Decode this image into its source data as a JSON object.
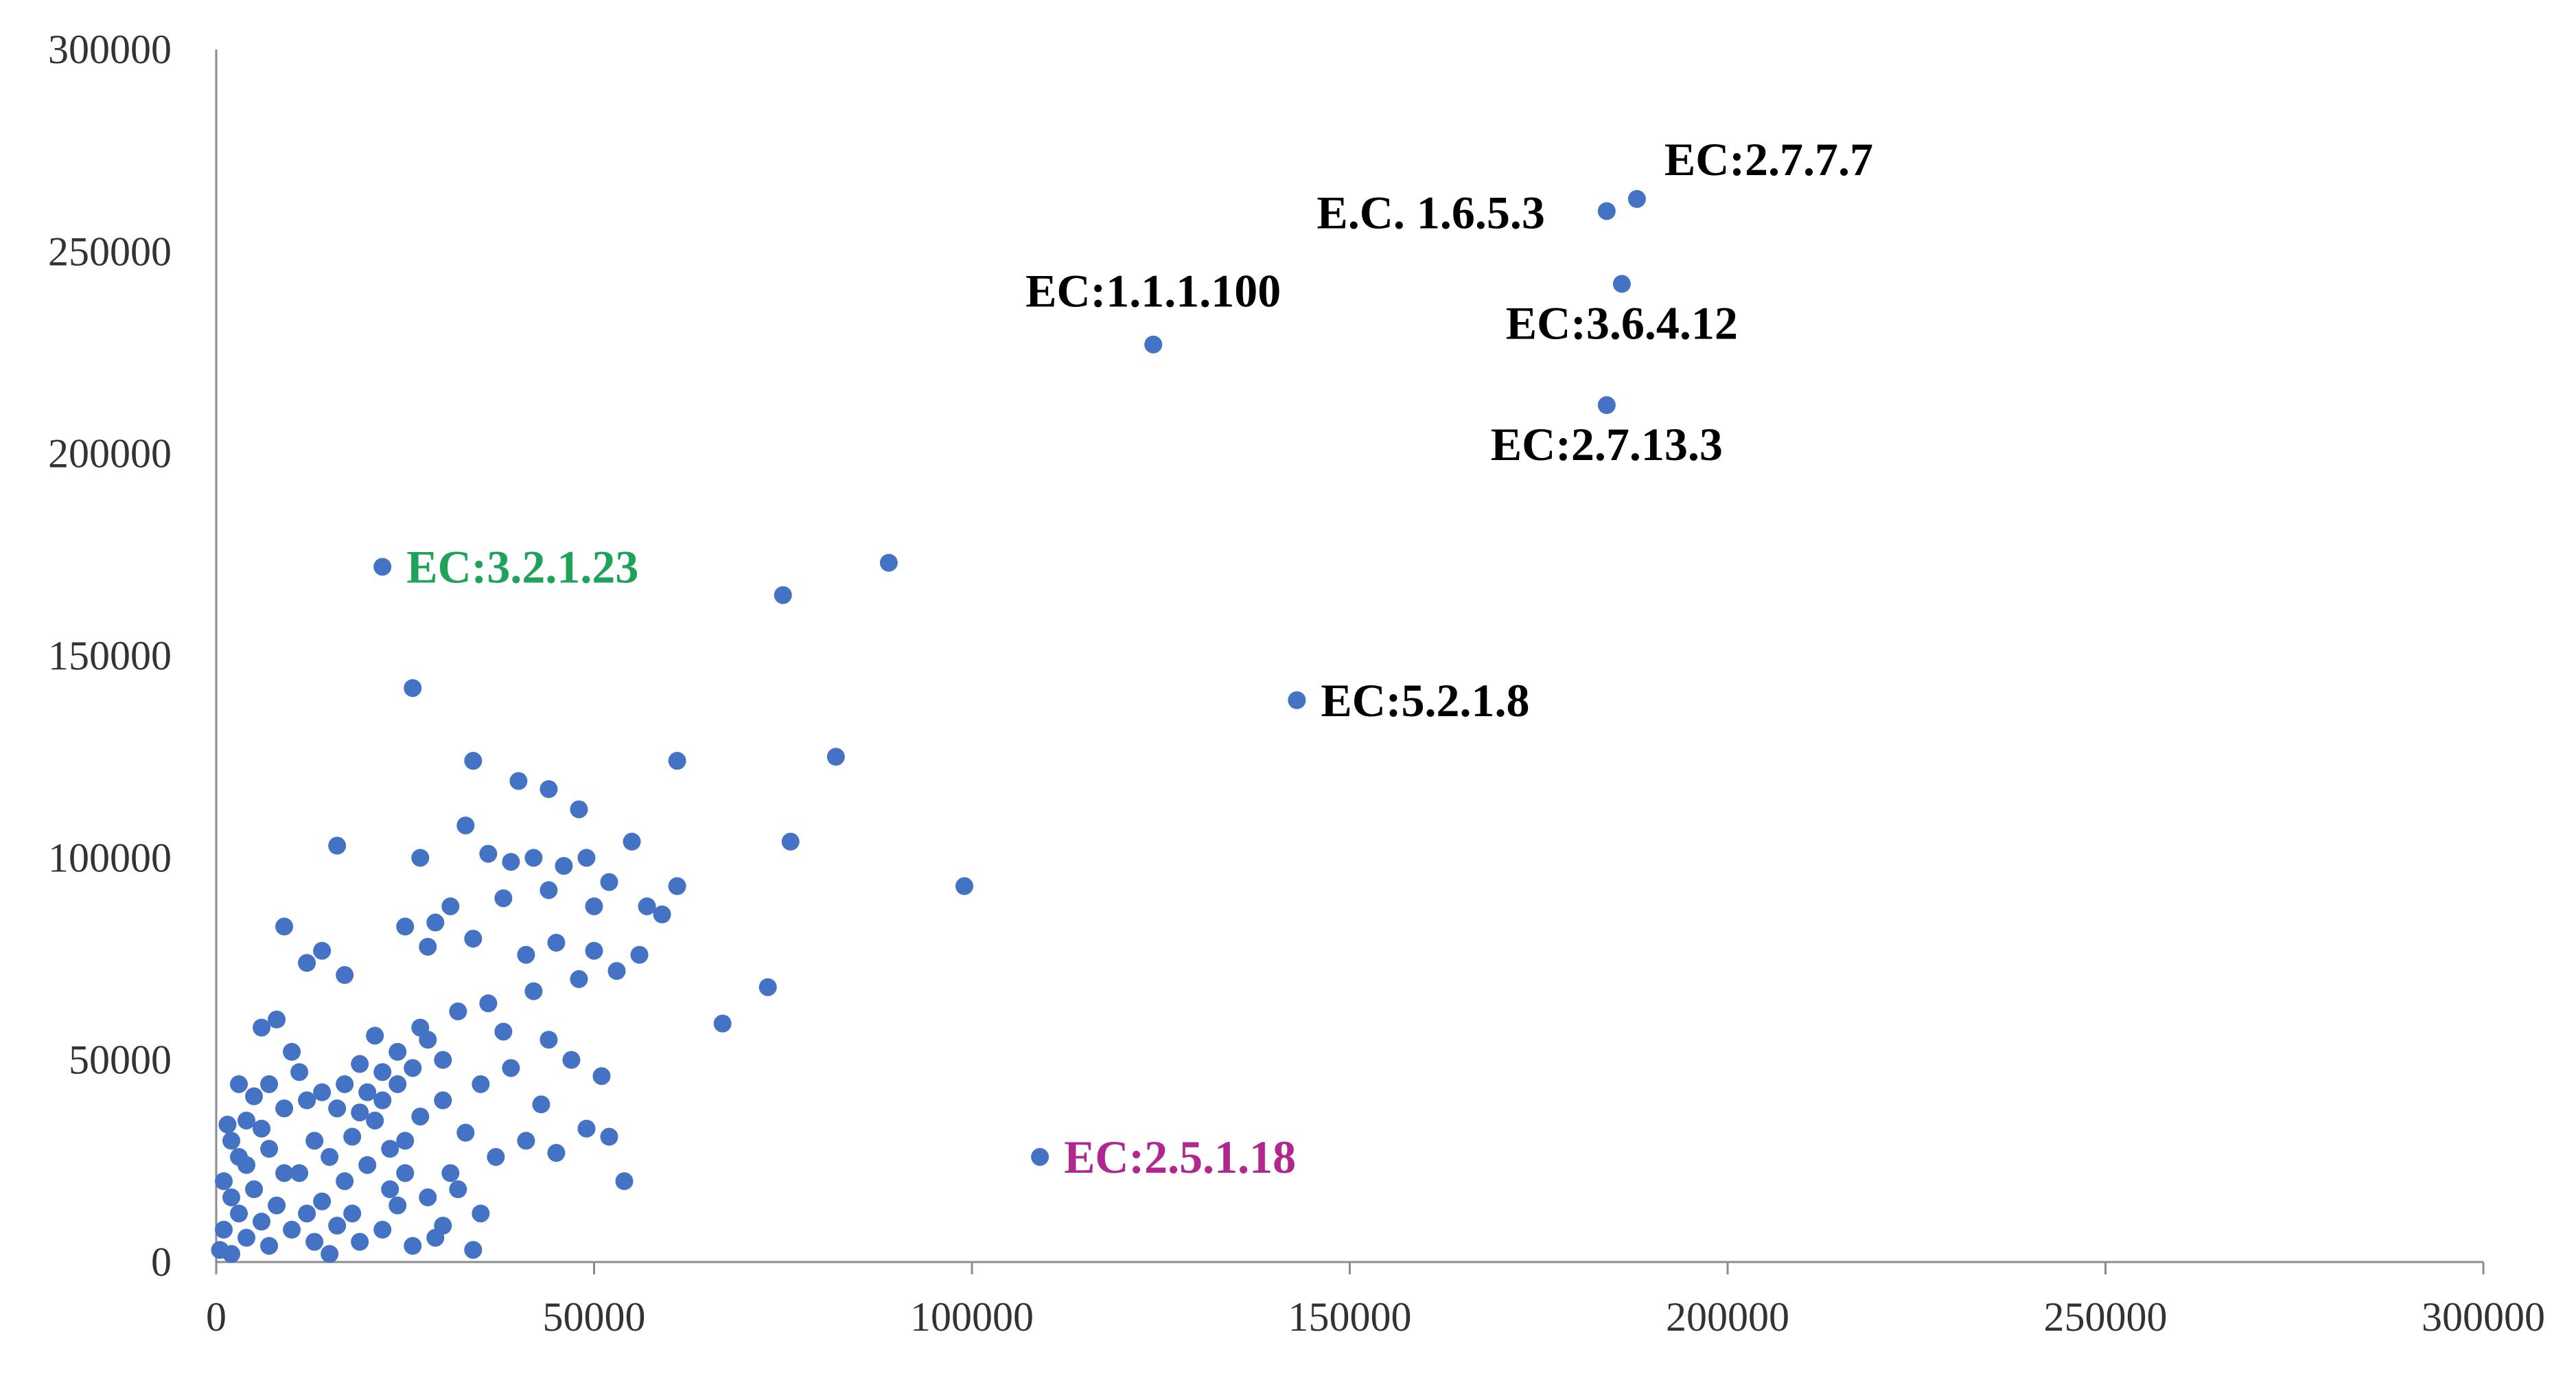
{
  "chart_data": {
    "type": "scatter",
    "title": "",
    "xlabel": "",
    "ylabel": "",
    "xlim": [
      0,
      300000
    ],
    "ylim": [
      0,
      300000
    ],
    "x_ticks": [
      0,
      50000,
      100000,
      150000,
      200000,
      250000,
      300000
    ],
    "y_ticks": [
      0,
      50000,
      100000,
      150000,
      200000,
      250000,
      300000
    ],
    "x_tick_labels": [
      "0",
      "50000",
      "100000",
      "150000",
      "200000",
      "250000",
      "300000"
    ],
    "y_tick_labels": [
      "0",
      "50000",
      "100000",
      "150000",
      "200000",
      "250000",
      "300000"
    ],
    "grid": false,
    "legend": "none",
    "marker_color": "#4472C4",
    "series": [
      {
        "points": [
          [
            184000,
            260000
          ],
          [
            188000,
            263000
          ],
          [
            186000,
            242000
          ],
          [
            184000,
            212000
          ],
          [
            124000,
            227000
          ],
          [
            143000,
            139000
          ],
          [
            22000,
            172000
          ],
          [
            109000,
            26000
          ],
          [
            75000,
            165000
          ],
          [
            89000,
            173000
          ],
          [
            26000,
            142000
          ],
          [
            61000,
            124000
          ],
          [
            82000,
            125000
          ],
          [
            34000,
            124000
          ],
          [
            40000,
            119000
          ],
          [
            44000,
            117000
          ],
          [
            48000,
            112000
          ],
          [
            16000,
            103000
          ],
          [
            76000,
            104000
          ],
          [
            99000,
            93000
          ],
          [
            73000,
            68000
          ],
          [
            67000,
            59000
          ],
          [
            54000,
            20000
          ],
          [
            9000,
            83000
          ],
          [
            14000,
            77000
          ],
          [
            12000,
            74000
          ],
          [
            17000,
            71000
          ],
          [
            27000,
            100000
          ],
          [
            33000,
            108000
          ],
          [
            36000,
            101000
          ],
          [
            39000,
            99000
          ],
          [
            42000,
            100000
          ],
          [
            46000,
            98000
          ],
          [
            49000,
            100000
          ],
          [
            55000,
            104000
          ],
          [
            52000,
            94000
          ],
          [
            57000,
            88000
          ],
          [
            61000,
            93000
          ],
          [
            59000,
            86000
          ],
          [
            50000,
            88000
          ],
          [
            44000,
            92000
          ],
          [
            38000,
            90000
          ],
          [
            31000,
            88000
          ],
          [
            29000,
            84000
          ],
          [
            25000,
            83000
          ],
          [
            28000,
            78000
          ],
          [
            34000,
            80000
          ],
          [
            41000,
            76000
          ],
          [
            45000,
            79000
          ],
          [
            50000,
            77000
          ],
          [
            56000,
            76000
          ],
          [
            53000,
            72000
          ],
          [
            48000,
            70000
          ],
          [
            42000,
            67000
          ],
          [
            36000,
            64000
          ],
          [
            32000,
            62000
          ],
          [
            38000,
            57000
          ],
          [
            44000,
            55000
          ],
          [
            47000,
            50000
          ],
          [
            51000,
            46000
          ],
          [
            39000,
            48000
          ],
          [
            35000,
            44000
          ],
          [
            30000,
            40000
          ],
          [
            27000,
            36000
          ],
          [
            33000,
            32000
          ],
          [
            41000,
            30000
          ],
          [
            37000,
            26000
          ],
          [
            45000,
            27000
          ],
          [
            49000,
            33000
          ],
          [
            52000,
            31000
          ],
          [
            43000,
            39000
          ],
          [
            31000,
            22000
          ],
          [
            28000,
            16000
          ],
          [
            35000,
            12000
          ],
          [
            29000,
            6000
          ],
          [
            26000,
            4000
          ],
          [
            34000,
            3000
          ],
          [
            30000,
            9000
          ],
          [
            32000,
            18000
          ],
          [
            24000,
            14000
          ],
          [
            25000,
            22000
          ],
          [
            23000,
            28000
          ],
          [
            21000,
            35000
          ],
          [
            20000,
            42000
          ],
          [
            22000,
            47000
          ],
          [
            24000,
            52000
          ],
          [
            21000,
            56000
          ],
          [
            19000,
            49000
          ],
          [
            17000,
            44000
          ],
          [
            16000,
            38000
          ],
          [
            18000,
            31000
          ],
          [
            15000,
            26000
          ],
          [
            17000,
            20000
          ],
          [
            14000,
            15000
          ],
          [
            16000,
            9000
          ],
          [
            13000,
            5000
          ],
          [
            15000,
            2000
          ],
          [
            12000,
            12000
          ],
          [
            11000,
            22000
          ],
          [
            13000,
            30000
          ],
          [
            12000,
            40000
          ],
          [
            11000,
            47000
          ],
          [
            10000,
            52000
          ],
          [
            8000,
            60000
          ],
          [
            6000,
            58000
          ],
          [
            7000,
            44000
          ],
          [
            5000,
            41000
          ],
          [
            3000,
            44000
          ],
          [
            4000,
            35000
          ],
          [
            2000,
            30000
          ],
          [
            1000,
            20000
          ],
          [
            3000,
            12000
          ],
          [
            1000,
            8000
          ],
          [
            500,
            3000
          ],
          [
            2000,
            2000
          ],
          [
            4000,
            6000
          ],
          [
            6000,
            10000
          ],
          [
            8000,
            14000
          ],
          [
            9000,
            22000
          ],
          [
            7000,
            28000
          ],
          [
            6000,
            33000
          ],
          [
            9000,
            38000
          ],
          [
            4000,
            24000
          ],
          [
            2000,
            16000
          ],
          [
            5000,
            18000
          ],
          [
            3000,
            26000
          ],
          [
            1500,
            34000
          ],
          [
            7000,
            4000
          ],
          [
            10000,
            8000
          ],
          [
            14000,
            42000
          ],
          [
            18000,
            12000
          ],
          [
            19000,
            5000
          ],
          [
            22000,
            8000
          ],
          [
            23000,
            18000
          ],
          [
            20000,
            24000
          ],
          [
            19000,
            37000
          ],
          [
            22000,
            40000
          ],
          [
            24000,
            44000
          ],
          [
            25000,
            30000
          ],
          [
            26000,
            48000
          ],
          [
            28000,
            55000
          ],
          [
            30000,
            50000
          ],
          [
            27000,
            58000
          ]
        ]
      }
    ],
    "annotations": [
      {
        "text": "EC:2.7.7.7",
        "x": 188000,
        "y": 263000,
        "color": "#000000",
        "anchor": "above-right"
      },
      {
        "text": "E.C. 1.6.5.3",
        "x": 184000,
        "y": 260000,
        "color": "#000000",
        "anchor": "left"
      },
      {
        "text": "EC:3.6.4.12",
        "x": 186000,
        "y": 242000,
        "color": "#000000",
        "anchor": "below"
      },
      {
        "text": "EC:2.7.13.3",
        "x": 184000,
        "y": 212000,
        "color": "#000000",
        "anchor": "below"
      },
      {
        "text": "EC:1.1.1.100",
        "x": 124000,
        "y": 227000,
        "color": "#000000",
        "anchor": "above"
      },
      {
        "text": "EC:5.2.1.8",
        "x": 143000,
        "y": 139000,
        "color": "#000000",
        "anchor": "right"
      },
      {
        "text": "EC:3.2.1.23",
        "x": 22000,
        "y": 172000,
        "color": "#1FA35B",
        "anchor": "right"
      },
      {
        "text": "EC:2.5.1.18",
        "x": 109000,
        "y": 26000,
        "color": "#B0278F",
        "anchor": "right"
      }
    ]
  }
}
